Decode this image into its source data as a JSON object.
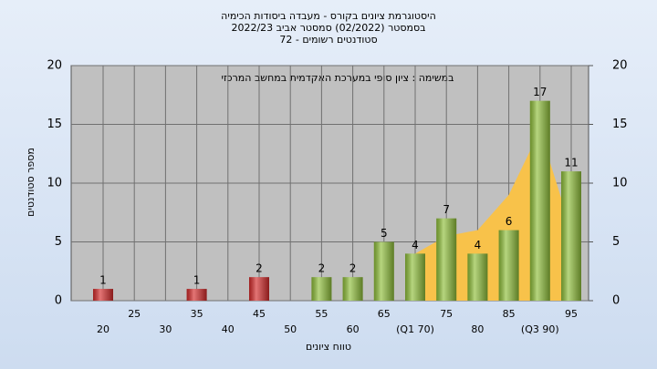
{
  "chart_data": {
    "type": "bar",
    "title": [
      "היסטוגרמת ציונים בקורס - מעבדה ביסודות הכימיה",
      "בסמסטר  (02/2022)  סמסטר אביב 2022/23",
      "סטודנטים רשומים - 72"
    ],
    "annotation": "במשימה : ציון סופי במערכת האקדמית במחשב המרכזי",
    "x_label": "טווח ציונים",
    "y_label": "מספר סטודנטים",
    "categories": [
      "20",
      "25",
      "30",
      "35",
      "40",
      "45",
      "50",
      "55",
      "60",
      "65",
      "(Q1 70)",
      "75",
      "80",
      "85",
      "(Q3 90)",
      "95"
    ],
    "series": [
      {
        "values": [
          1,
          null,
          null,
          1,
          null,
          2,
          null,
          2,
          2,
          5,
          4,
          7,
          4,
          6,
          17,
          11
        ],
        "colors": [
          "#d42a2a",
          null,
          null,
          "#d42a2a",
          null,
          "#d42a2a",
          null,
          "#8fbf3a",
          "#8fbf3a",
          "#8fbf3a",
          "#8fbf3a",
          "#8fbf3a",
          "#8fbf3a",
          "#8fbf3a",
          "#8fbf3a",
          "#8fbf3a"
        ]
      },
      {
        "type": "area",
        "color": "#f8c24a",
        "values": [
          null,
          null,
          null,
          null,
          null,
          null,
          null,
          null,
          null,
          null,
          4,
          5.5,
          6,
          9,
          14.5,
          6
        ]
      }
    ],
    "ylim": [
      0,
      20
    ],
    "yticks": [
      0,
      5,
      10,
      15,
      20
    ],
    "y2lim": [
      0,
      20
    ],
    "y2ticks": [
      0,
      5,
      10,
      15,
      20
    ],
    "grid": true
  }
}
